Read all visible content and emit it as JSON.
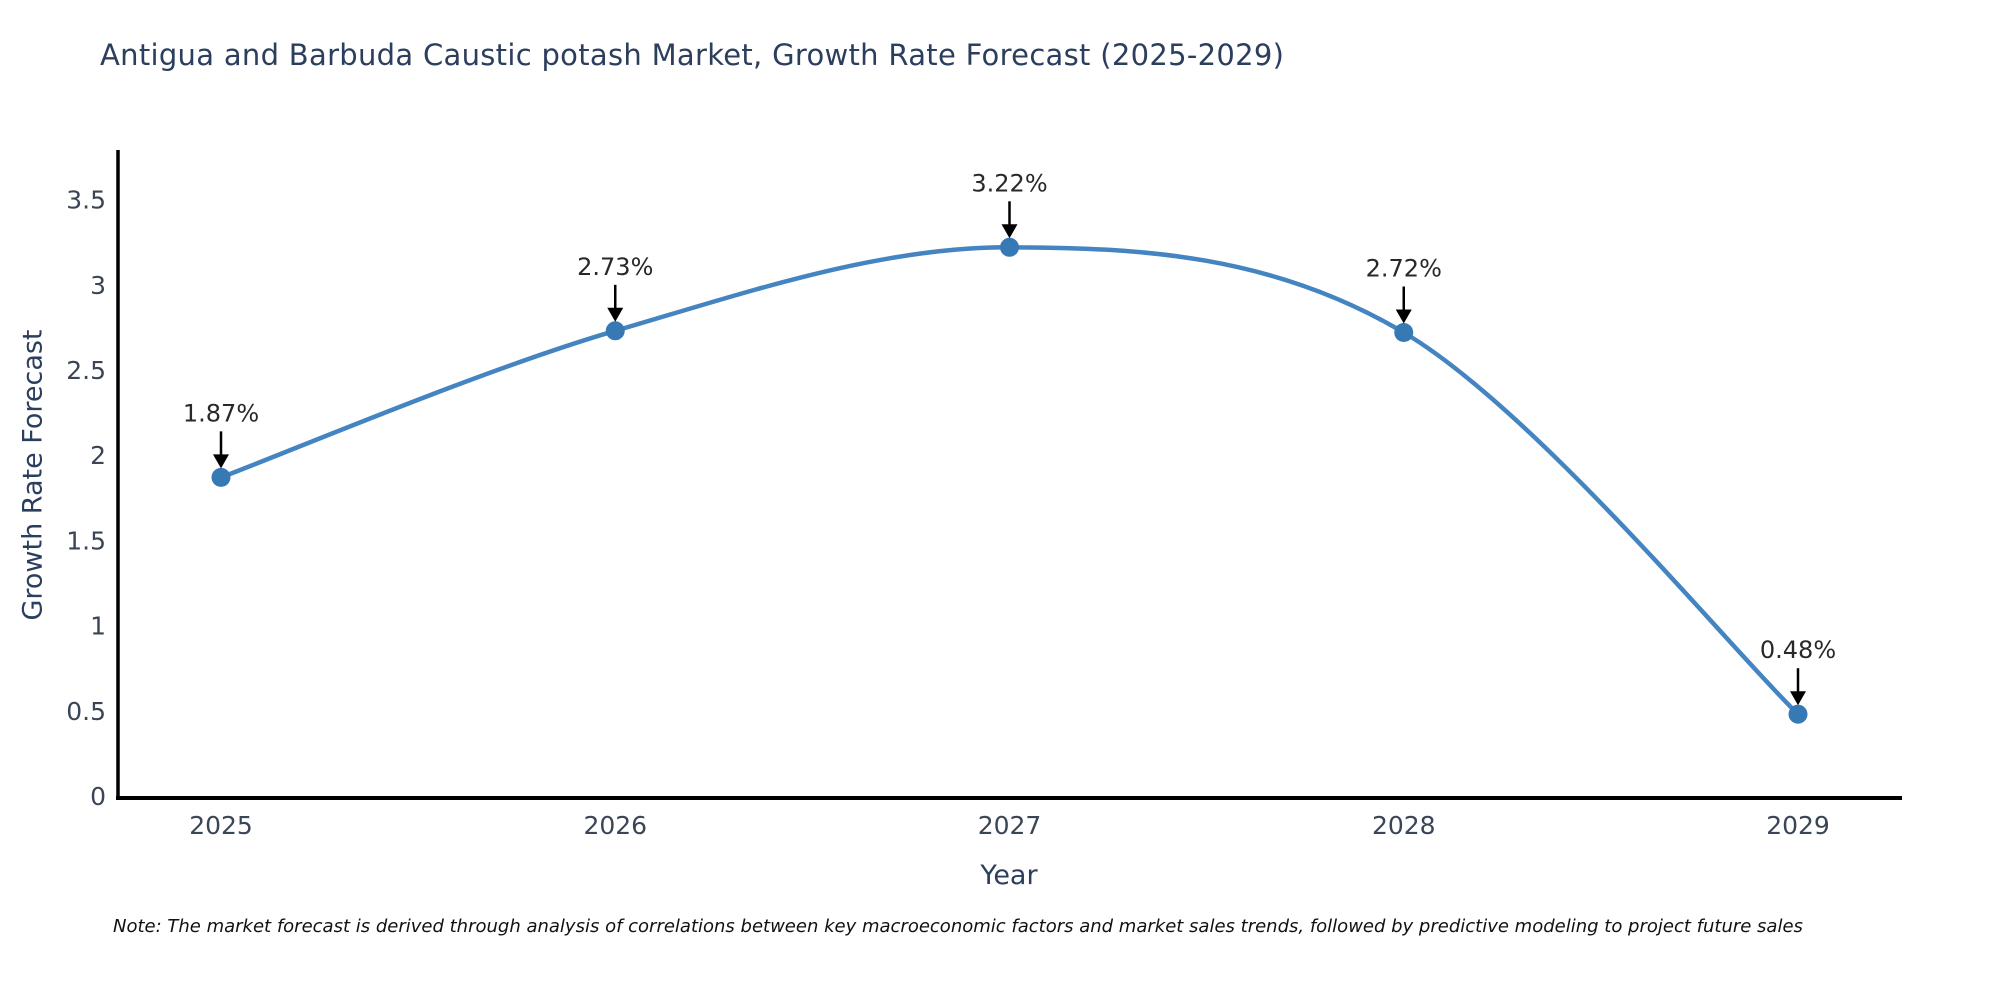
{
  "footer": {
    "note": "Note: The market forecast is derived through analysis of correlations between key macroeconomic factors and market sales trends, followed by predictive modeling to project future sales"
  },
  "chart_data": {
    "type": "line",
    "title": "Antigua and Barbuda Caustic potash Market, Growth Rate Forecast (2025-2029)",
    "xlabel": "Year",
    "ylabel": "Growth Rate Forecast",
    "categories": [
      "2025",
      "2026",
      "2027",
      "2028",
      "2029"
    ],
    "values": [
      1.87,
      2.73,
      3.22,
      2.72,
      0.48
    ],
    "point_labels": [
      "1.87%",
      "2.73%",
      "3.22%",
      "2.72%",
      "0.48%"
    ],
    "series": [
      {
        "name": "Growth Rate Forecast",
        "values": [
          1.87,
          2.73,
          3.22,
          2.72,
          0.48
        ]
      }
    ],
    "ylim": [
      0,
      3.79
    ],
    "yticks": [
      0,
      0.5,
      1,
      1.5,
      2,
      2.5,
      3,
      3.5
    ],
    "ytick_labels": [
      "0",
      "0.5",
      "1",
      "1.5",
      "2",
      "2.5",
      "3",
      "3.5"
    ],
    "grid": false,
    "legend_position": "none",
    "line_shape": "spline",
    "annotations_arrow": "down-black",
    "colors": {
      "line": "#4485c1",
      "marker": "#3779b5",
      "axis": "#000000",
      "title": "#2c3e5d",
      "tick": "#3a4556",
      "annotation": "#282828",
      "arrow": "#000000",
      "background": "#ffffff"
    }
  }
}
